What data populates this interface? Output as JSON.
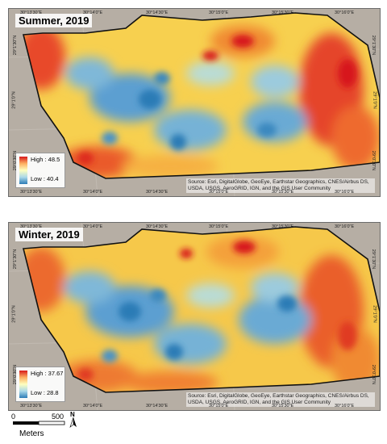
{
  "maps": [
    {
      "title": "Summer, 2019",
      "legend": {
        "high": "High : 48.5",
        "low": "Low : 40.4"
      },
      "credit": "Source: Esri, DigitalGlobe, GeoEye, Earthstar Geographics, CNES/Airbus DS, USDA, USGS, AeroGRID, IGN, and the GIS User Community",
      "ticks_top": [
        "30°13'30\"E",
        "30°14'0\"E",
        "30°14'30\"E",
        "30°15'0\"E",
        "30°15'30\"E",
        "30°16'0\"E"
      ],
      "ticks_bottom": [
        "30°13'30\"E",
        "30°14'0\"E",
        "30°14'30\"E",
        "30°15'0\"E",
        "30°15'30\"E",
        "30°16'0\"E"
      ],
      "ticks_left": [
        "29°1'30\"N",
        "29°1'0\"N",
        "29°0'30\"N"
      ],
      "ticks_right": [
        "29°1'30\"N",
        "29°1'0\"N",
        "29°0'30\"N"
      ]
    },
    {
      "title": "Winter, 2019",
      "legend": {
        "high": "High : 37.67",
        "low": "Low : 28.8"
      },
      "credit": "Source: Esri, DigitalGlobe, GeoEye, Earthstar Geographics, CNES/Airbus DS, USDA, USGS, AeroGRID, IGN, and the GIS User Community",
      "ticks_top": [
        "30°13'30\"E",
        "30°14'0\"E",
        "30°14'30\"E",
        "30°15'0\"E",
        "30°15'30\"E",
        "30°16'0\"E"
      ],
      "ticks_bottom": [
        "30°13'30\"E",
        "30°14'0\"E",
        "30°14'30\"E",
        "30°15'0\"E",
        "30°15'30\"E",
        "30°16'0\"E"
      ],
      "ticks_left": [
        "29°1'30\"N",
        "29°1'0\"N",
        "29°0'30\"N"
      ],
      "ticks_right": [
        "29°1'30\"N",
        "29°1'0\"N",
        "29°0'30\"N"
      ]
    }
  ],
  "scalebar": {
    "zero": "0",
    "max": "500",
    "unit": "Meters"
  },
  "north_arrow": {
    "label": "N"
  },
  "colors": {
    "high": "#d7191c",
    "mid": "#ffffbf",
    "low": "#2c7bb6"
  }
}
